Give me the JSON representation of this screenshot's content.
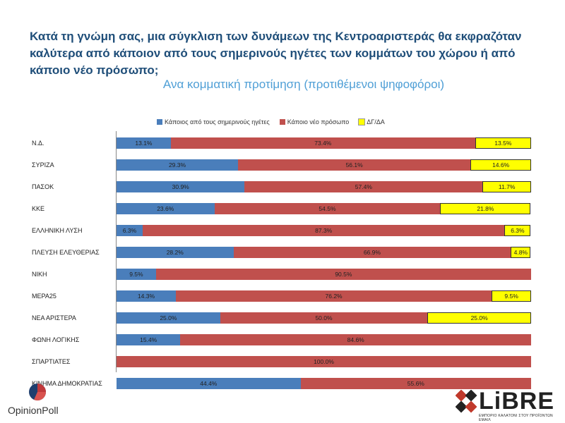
{
  "title": "Κατά τη γνώμη σας, μια σύγκλιση των δυνάμεων της Κεντροαριστεράς θα εκφραζόταν καλύτερα από κάποιον από τους σημερινούς ηγέτες των κομμάτων του χώρου ή από κάποιο νέο πρόσωπο;",
  "subtitle": "Ανα κομματική προτίμηση (προτιθέμενοι ψηφοφόροι)",
  "chart_data": {
    "type": "bar",
    "orientation": "horizontal",
    "stacked": true,
    "normalized_percent": true,
    "legend_position": "top",
    "categories": [
      "Ν.Δ.",
      "ΣΥΡΙΖΑ",
      "ΠΑΣΟΚ",
      "ΚΚΕ",
      "ΕΛΛΗΝΙΚΗ ΛΥΣΗ",
      "ΠΛΕΥΣΗ ΕΛΕΥΘΕΡΙΑΣ",
      "ΝΙΚΗ",
      "ΜΕΡΑ25",
      "ΝΕΑ ΑΡΙΣΤΕΡΑ",
      "ΦΩΝΗ ΛΟΓΙΚΗΣ",
      "ΣΠΑΡΤΙΑΤΕΣ",
      "ΚΙΝΗΜΑ ΔΗΜΟΚΡΑΤΙΑΣ"
    ],
    "series": [
      {
        "name": "Κάποιος από τους σημερινούς ηγέτες",
        "color": "#4a7ebb",
        "values": [
          13.1,
          29.3,
          30.9,
          23.6,
          6.3,
          28.2,
          9.5,
          14.3,
          25.0,
          15.4,
          0,
          44.4
        ],
        "labels": [
          "13.1%",
          "29.3%",
          "30.9%",
          "23.6%",
          "6.3%",
          "28.2%",
          "9.5%",
          "14.3%",
          "25.0%",
          "15.4%",
          "",
          "44.4%"
        ]
      },
      {
        "name": "Κάποιο νέο πρόσωπο",
        "color": "#c0504d",
        "values": [
          73.4,
          56.1,
          57.4,
          54.5,
          87.3,
          66.9,
          90.5,
          76.2,
          50.0,
          84.6,
          100.0,
          55.6
        ],
        "labels": [
          "73.4%",
          "56.1%",
          "57.4%",
          "54.5%",
          "87.3%",
          "66.9%",
          "90.5%",
          "76.2%",
          "50.0%",
          "84.6%",
          "100.0%",
          "55.6%"
        ]
      },
      {
        "name": "ΔΓ/ΔΑ",
        "color": "#ffff00",
        "values": [
          13.5,
          14.6,
          11.7,
          21.8,
          6.3,
          4.8,
          0,
          9.5,
          25.0,
          0,
          0,
          0
        ],
        "labels": [
          "13.5%",
          "14.6%",
          "11.7%",
          "21.8%",
          "6.3%",
          "4.8%",
          "",
          "9.5%",
          "25.0%",
          "",
          "",
          ""
        ]
      }
    ]
  },
  "logos": {
    "opinionpoll": "OpinionPoll",
    "libre": "LiBRE",
    "libre_tagline": "ΕΜΠΟΡΙΟ ΚΑΛΑΤΟΝΙ ΣΤΟΥ ΠΡΟΪΟΝΤΩΝ ΕΜΑΙΛ"
  }
}
